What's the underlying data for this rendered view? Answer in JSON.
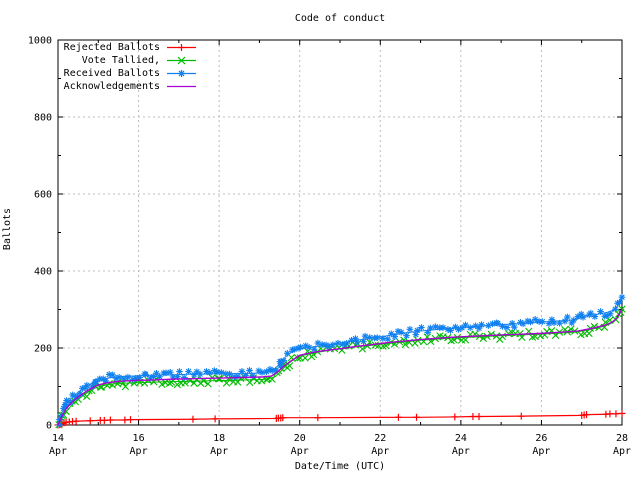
{
  "chart_data": {
    "type": "line",
    "title": "Code of conduct",
    "xlabel": "Date/Time (UTC)",
    "ylabel": "Ballots",
    "xlim": [
      14,
      28
    ],
    "ylim": [
      0,
      1000
    ],
    "x_ticks": [
      {
        "value": 14,
        "line1": "14",
        "line2": "Apr"
      },
      {
        "value": 16,
        "line1": "16",
        "line2": "Apr"
      },
      {
        "value": 18,
        "line1": "18",
        "line2": "Apr"
      },
      {
        "value": 20,
        "line1": "20",
        "line2": "Apr"
      },
      {
        "value": 22,
        "line1": "22",
        "line2": "Apr"
      },
      {
        "value": 24,
        "line1": "24",
        "line2": "Apr"
      },
      {
        "value": 26,
        "line1": "26",
        "line2": "Apr"
      },
      {
        "value": 28,
        "line1": "28",
        "line2": "Apr"
      }
    ],
    "x_minor_ticks": [
      15,
      17,
      19,
      21,
      23,
      25,
      27
    ],
    "y_ticks": [
      0,
      200,
      400,
      600,
      800,
      1000
    ],
    "y_minor_ticks": [
      100,
      300,
      500,
      700,
      900
    ],
    "grid": true,
    "grid_color": "#bdbdbd",
    "legend_position": "top-left",
    "series": [
      {
        "name": "Rejected Ballots",
        "color": "#ff0000",
        "marker": "plus",
        "marker_mode": "points",
        "line_width": 1.2,
        "points": [
          [
            14.0,
            0
          ],
          [
            14.06,
            2
          ],
          [
            14.1,
            4
          ],
          [
            14.15,
            6
          ],
          [
            14.2,
            7
          ],
          [
            14.28,
            8
          ],
          [
            14.36,
            9
          ],
          [
            14.45,
            10
          ],
          [
            14.8,
            11
          ],
          [
            15.05,
            12
          ],
          [
            15.15,
            12
          ],
          [
            15.3,
            13
          ],
          [
            15.66,
            13
          ],
          [
            15.8,
            14
          ],
          [
            17.35,
            15
          ],
          [
            17.9,
            16
          ],
          [
            19.42,
            17
          ],
          [
            19.47,
            18
          ],
          [
            19.53,
            18
          ],
          [
            19.58,
            19
          ],
          [
            20.45,
            19
          ],
          [
            22.45,
            20
          ],
          [
            22.9,
            20
          ],
          [
            23.85,
            21
          ],
          [
            24.3,
            22
          ],
          [
            24.45,
            22
          ],
          [
            25.5,
            23
          ],
          [
            27.0,
            25
          ],
          [
            27.06,
            26
          ],
          [
            27.12,
            27
          ],
          [
            27.6,
            28
          ],
          [
            27.7,
            29
          ],
          [
            27.85,
            29
          ],
          [
            28.0,
            30
          ]
        ]
      },
      {
        "name": "Vote Tallied,",
        "color": "#00bb00",
        "marker": "cross",
        "marker_mode": "dense",
        "line_width": 1,
        "points": [
          [
            14.0,
            0
          ],
          [
            14.05,
            8
          ],
          [
            14.1,
            18
          ],
          [
            14.15,
            27
          ],
          [
            14.2,
            35
          ],
          [
            14.27,
            43
          ],
          [
            14.34,
            51
          ],
          [
            14.42,
            59
          ],
          [
            14.5,
            66
          ],
          [
            14.58,
            73
          ],
          [
            14.66,
            79
          ],
          [
            14.74,
            85
          ],
          [
            14.82,
            90
          ],
          [
            14.9,
            95
          ],
          [
            15.0,
            99
          ],
          [
            15.15,
            103
          ],
          [
            15.3,
            106
          ],
          [
            15.5,
            108
          ],
          [
            15.75,
            109
          ],
          [
            16.0,
            110
          ],
          [
            16.3,
            111
          ],
          [
            16.6,
            112
          ],
          [
            17.0,
            113
          ],
          [
            17.4,
            114
          ],
          [
            17.8,
            115
          ],
          [
            18.2,
            116
          ],
          [
            18.6,
            117
          ],
          [
            19.0,
            118
          ],
          [
            19.2,
            119
          ],
          [
            19.4,
            126
          ],
          [
            19.52,
            138
          ],
          [
            19.64,
            152
          ],
          [
            19.76,
            163
          ],
          [
            19.88,
            172
          ],
          [
            20.0,
            179
          ],
          [
            20.25,
            185
          ],
          [
            20.5,
            190
          ],
          [
            20.8,
            195
          ],
          [
            21.1,
            199
          ],
          [
            21.4,
            203
          ],
          [
            21.8,
            207
          ],
          [
            22.2,
            212
          ],
          [
            22.6,
            216
          ],
          [
            23.0,
            220
          ],
          [
            23.4,
            223
          ],
          [
            23.8,
            226
          ],
          [
            24.2,
            228
          ],
          [
            24.6,
            230
          ],
          [
            25.0,
            232
          ],
          [
            25.5,
            234
          ],
          [
            26.0,
            236
          ],
          [
            26.5,
            239
          ],
          [
            26.9,
            242
          ],
          [
            27.1,
            246
          ],
          [
            27.3,
            250
          ],
          [
            27.5,
            255
          ],
          [
            27.65,
            260
          ],
          [
            27.78,
            267
          ],
          [
            27.88,
            277
          ],
          [
            27.94,
            288
          ],
          [
            28.0,
            301
          ]
        ]
      },
      {
        "name": "Received Ballots",
        "color": "#1080f0",
        "marker": "star",
        "marker_mode": "dense",
        "line_width": 1,
        "points": [
          [
            14.0,
            2
          ],
          [
            14.03,
            12
          ],
          [
            14.06,
            22
          ],
          [
            14.1,
            32
          ],
          [
            14.14,
            42
          ],
          [
            14.18,
            50
          ],
          [
            14.22,
            56
          ],
          [
            14.27,
            62
          ],
          [
            14.32,
            68
          ],
          [
            14.38,
            74
          ],
          [
            14.44,
            80
          ],
          [
            14.5,
            85
          ],
          [
            14.57,
            90
          ],
          [
            14.64,
            95
          ],
          [
            14.71,
            100
          ],
          [
            14.78,
            105
          ],
          [
            14.85,
            109
          ],
          [
            14.92,
            113
          ],
          [
            15.0,
            116
          ],
          [
            15.1,
            119
          ],
          [
            15.25,
            122
          ],
          [
            15.4,
            124
          ],
          [
            15.6,
            126
          ],
          [
            15.8,
            127
          ],
          [
            16.0,
            128
          ],
          [
            16.25,
            129
          ],
          [
            16.5,
            130
          ],
          [
            16.75,
            130
          ],
          [
            17.0,
            131
          ],
          [
            17.3,
            132
          ],
          [
            17.6,
            132
          ],
          [
            17.9,
            133
          ],
          [
            18.2,
            133
          ],
          [
            18.5,
            134
          ],
          [
            18.8,
            134
          ],
          [
            19.0,
            135
          ],
          [
            19.2,
            137
          ],
          [
            19.35,
            143
          ],
          [
            19.45,
            153
          ],
          [
            19.55,
            165
          ],
          [
            19.65,
            177
          ],
          [
            19.75,
            186
          ],
          [
            19.85,
            192
          ],
          [
            20.0,
            197
          ],
          [
            20.2,
            201
          ],
          [
            20.4,
            204
          ],
          [
            20.7,
            208
          ],
          [
            21.0,
            213
          ],
          [
            21.3,
            218
          ],
          [
            21.6,
            223
          ],
          [
            22.0,
            229
          ],
          [
            22.3,
            234
          ],
          [
            22.6,
            239
          ],
          [
            23.0,
            244
          ],
          [
            23.3,
            247
          ],
          [
            23.6,
            250
          ],
          [
            24.0,
            253
          ],
          [
            24.4,
            256
          ],
          [
            24.8,
            259
          ],
          [
            25.2,
            262
          ],
          [
            25.6,
            264
          ],
          [
            26.0,
            267
          ],
          [
            26.4,
            270
          ],
          [
            26.8,
            273
          ],
          [
            26.95,
            278
          ],
          [
            27.1,
            283
          ],
          [
            27.3,
            286
          ],
          [
            27.5,
            290
          ],
          [
            27.65,
            293
          ],
          [
            27.78,
            298
          ],
          [
            27.88,
            308
          ],
          [
            27.94,
            318
          ],
          [
            28.0,
            332
          ]
        ]
      },
      {
        "name": "Acknowledgements",
        "color": "#aa00d4",
        "marker": "none",
        "marker_mode": "none",
        "line_width": 1.4,
        "points": [
          [
            14.0,
            0
          ],
          [
            14.1,
            24
          ],
          [
            14.2,
            42
          ],
          [
            14.3,
            54
          ],
          [
            14.4,
            64
          ],
          [
            14.5,
            73
          ],
          [
            14.6,
            80
          ],
          [
            14.7,
            87
          ],
          [
            14.8,
            93
          ],
          [
            14.9,
            99
          ],
          [
            15.0,
            104
          ],
          [
            15.2,
            109
          ],
          [
            15.4,
            112
          ],
          [
            15.6,
            114
          ],
          [
            15.8,
            115
          ],
          [
            16.0,
            116
          ],
          [
            16.4,
            117
          ],
          [
            16.8,
            119
          ],
          [
            17.2,
            120
          ],
          [
            17.6,
            121
          ],
          [
            18.0,
            122
          ],
          [
            18.4,
            123
          ],
          [
            18.8,
            124
          ],
          [
            19.1,
            125
          ],
          [
            19.3,
            127
          ],
          [
            19.45,
            138
          ],
          [
            19.6,
            152
          ],
          [
            19.75,
            164
          ],
          [
            19.9,
            174
          ],
          [
            20.0,
            181
          ],
          [
            20.3,
            188
          ],
          [
            20.6,
            193
          ],
          [
            21.0,
            198
          ],
          [
            21.4,
            204
          ],
          [
            21.8,
            209
          ],
          [
            22.2,
            214
          ],
          [
            22.6,
            218
          ],
          [
            23.0,
            222
          ],
          [
            23.4,
            225
          ],
          [
            23.8,
            228
          ],
          [
            24.2,
            230
          ],
          [
            24.6,
            232
          ],
          [
            25.0,
            234
          ],
          [
            25.5,
            236
          ],
          [
            26.0,
            238
          ],
          [
            26.5,
            241
          ],
          [
            26.9,
            244
          ],
          [
            27.1,
            248
          ],
          [
            27.3,
            252
          ],
          [
            27.5,
            257
          ],
          [
            27.65,
            262
          ],
          [
            27.78,
            269
          ],
          [
            27.88,
            279
          ],
          [
            27.94,
            290
          ],
          [
            28.0,
            302
          ]
        ]
      }
    ]
  }
}
